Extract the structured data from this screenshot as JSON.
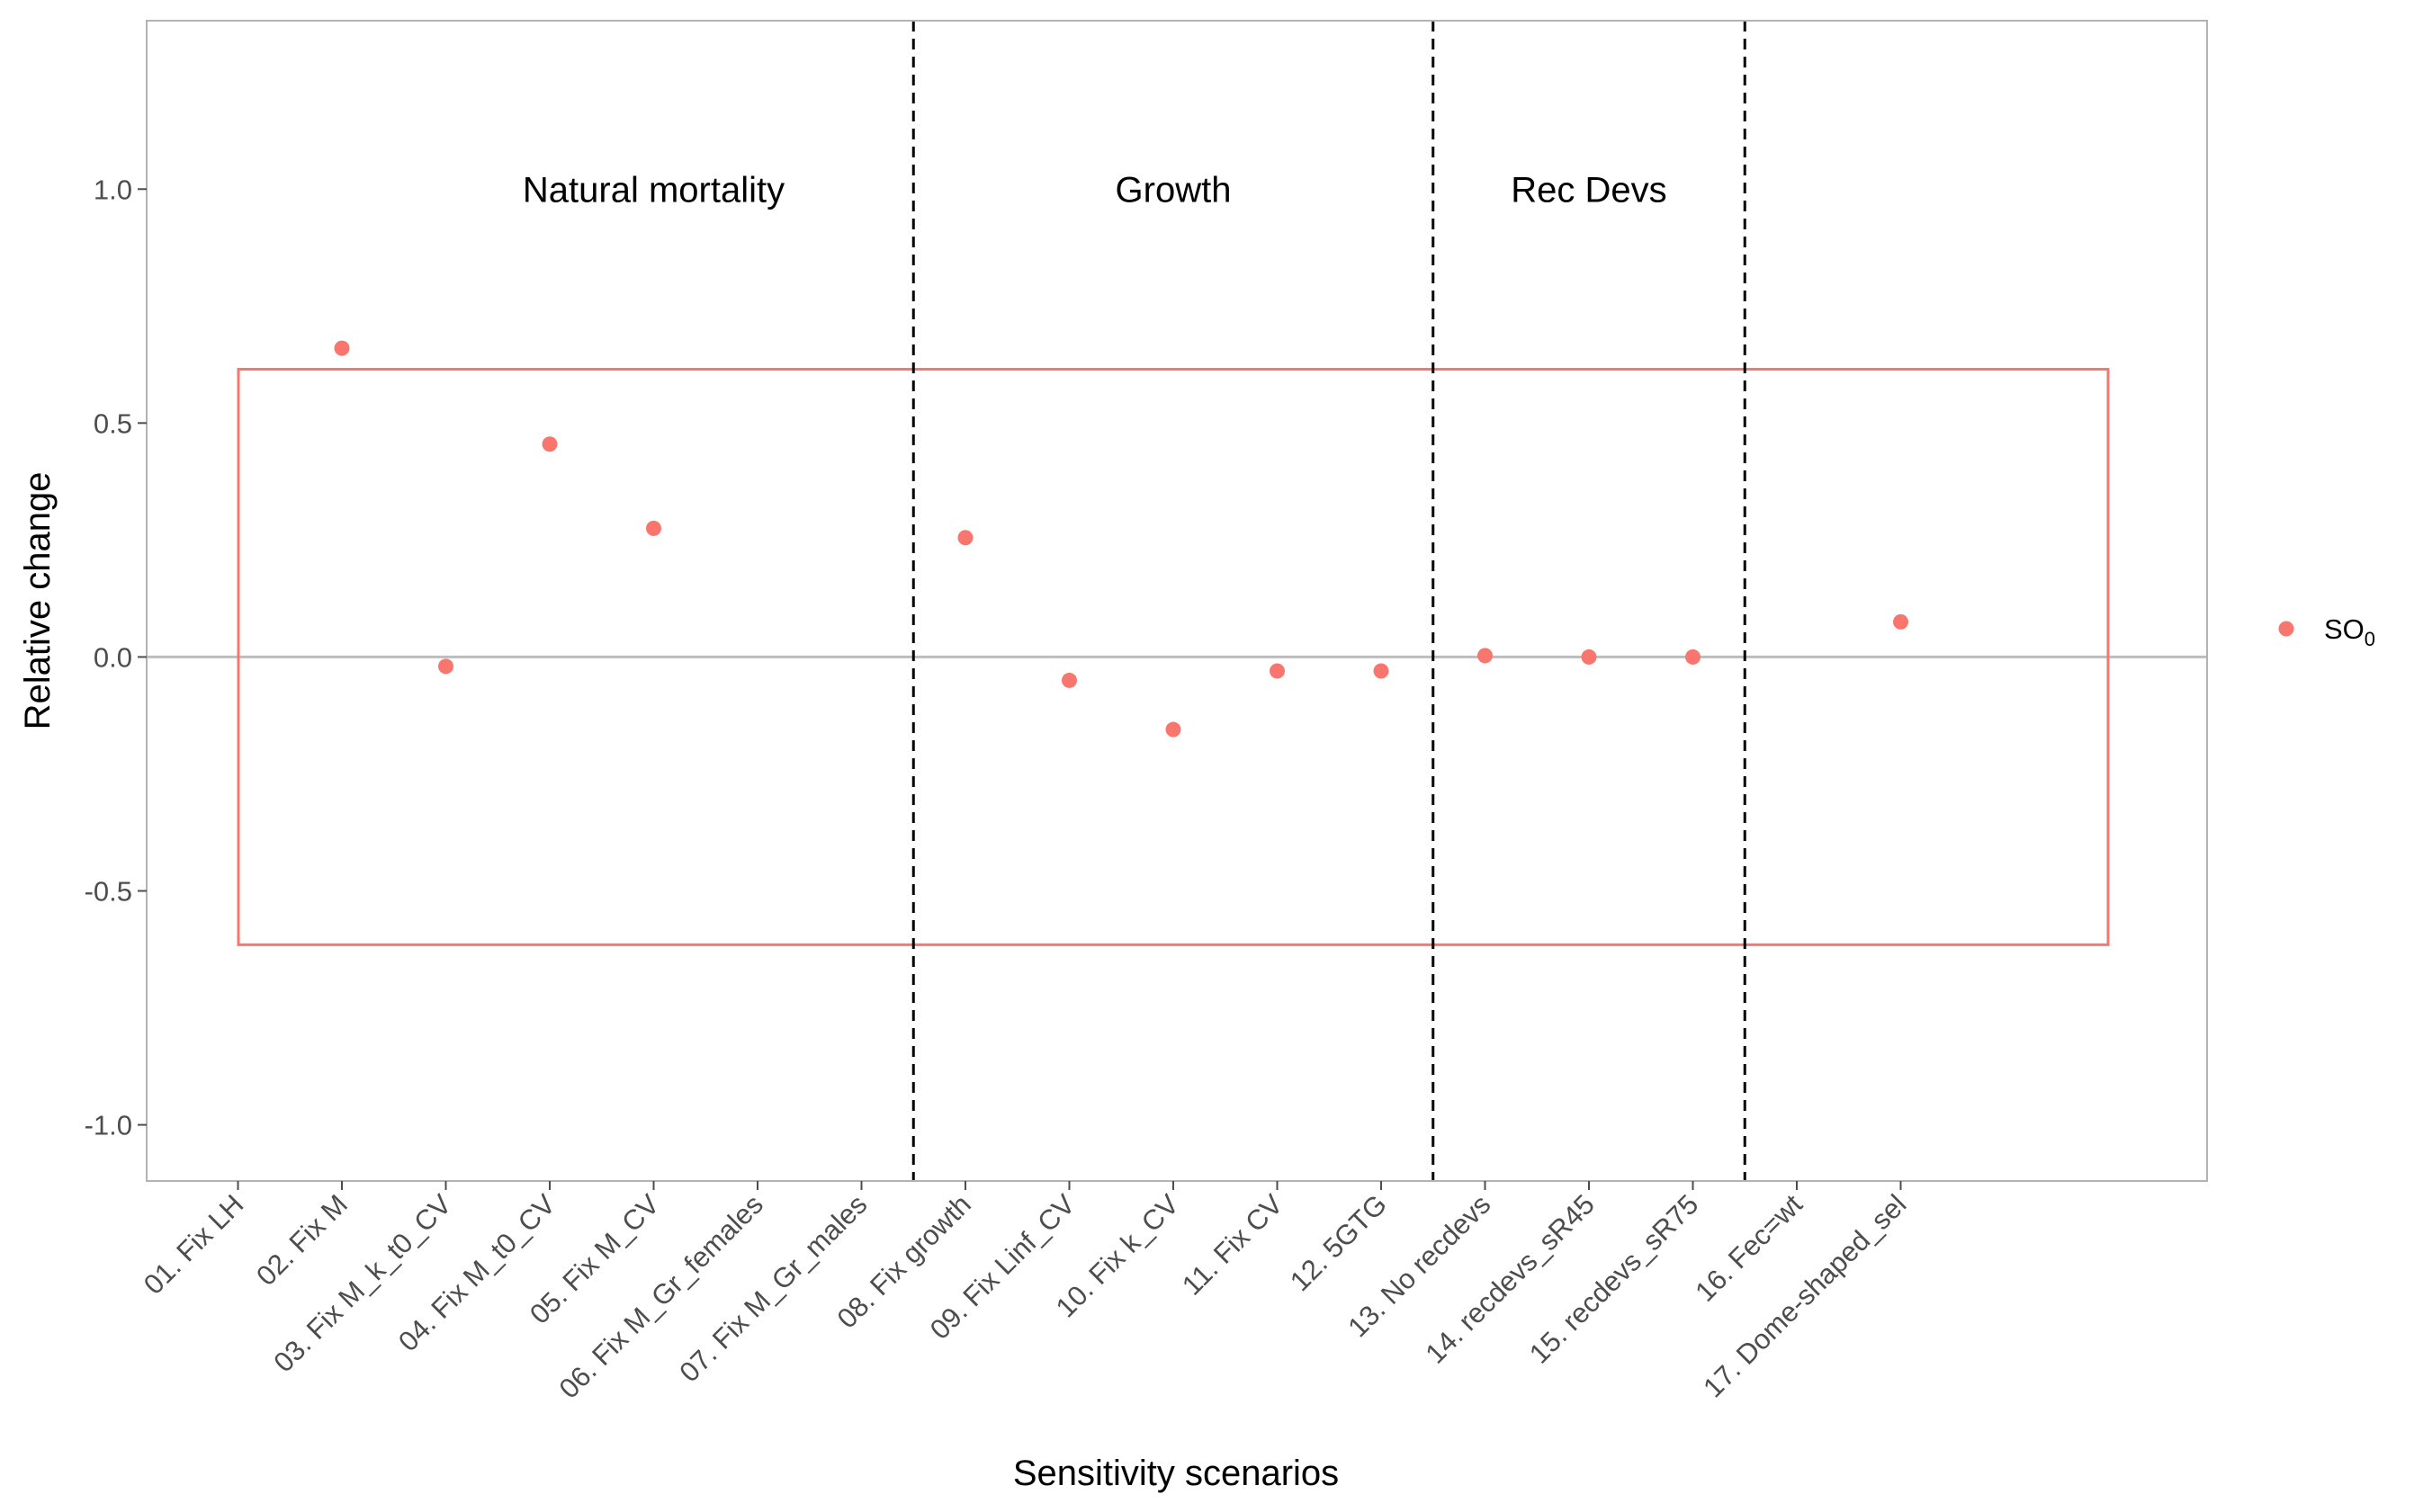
{
  "chart_data": {
    "type": "scatter",
    "xlabel": "Sensitivity scenarios",
    "ylabel": "Relative change",
    "ylim": [
      -1.12,
      1.36
    ],
    "yticks": [
      1.0,
      0.5,
      0.0,
      -0.5,
      -1.0
    ],
    "ytick_labels": [
      "1.0",
      "0.5",
      "0.0",
      "-0.5",
      "-1.0"
    ],
    "categories": [
      "01. Fix LH",
      "02. Fix M",
      "03. Fix M_k_t0_CV",
      "04. Fix M_t0_CV",
      "05. Fix M_CV",
      "06. Fix M_Gr_females",
      "07. Fix M_Gr_males",
      "08. Fix growth",
      "09. Fix Linf_CV",
      "10. Fix k_CV",
      "11. Fix CV",
      "12. 5GTG",
      "13. No recdevs",
      "14. recdevs_sR45",
      "15. recdevs_sR75",
      "16. Fec=wt",
      "17. Dome-shaped_sel"
    ],
    "series": [
      {
        "name": "SO",
        "name_subscript": "0",
        "color": "#F8766D",
        "values": [
          null,
          0.66,
          -0.02,
          0.455,
          0.275,
          null,
          null,
          0.255,
          -0.05,
          -0.155,
          -0.03,
          -0.03,
          0.003,
          0.0,
          0.0,
          null,
          0.075
        ]
      }
    ],
    "reference_line": 0.0,
    "box": {
      "ymin": -0.615,
      "ymax": 0.615,
      "color": "#F8766D"
    },
    "groups": [
      {
        "label": "Natural mortality",
        "center": 4
      },
      {
        "label": "Growth",
        "center": 9
      },
      {
        "label": "Rec Devs",
        "center": 13
      }
    ],
    "group_label_y": 1.0,
    "dividers_between": [
      7,
      12,
      15
    ],
    "legend_position": "right",
    "grid": false
  }
}
